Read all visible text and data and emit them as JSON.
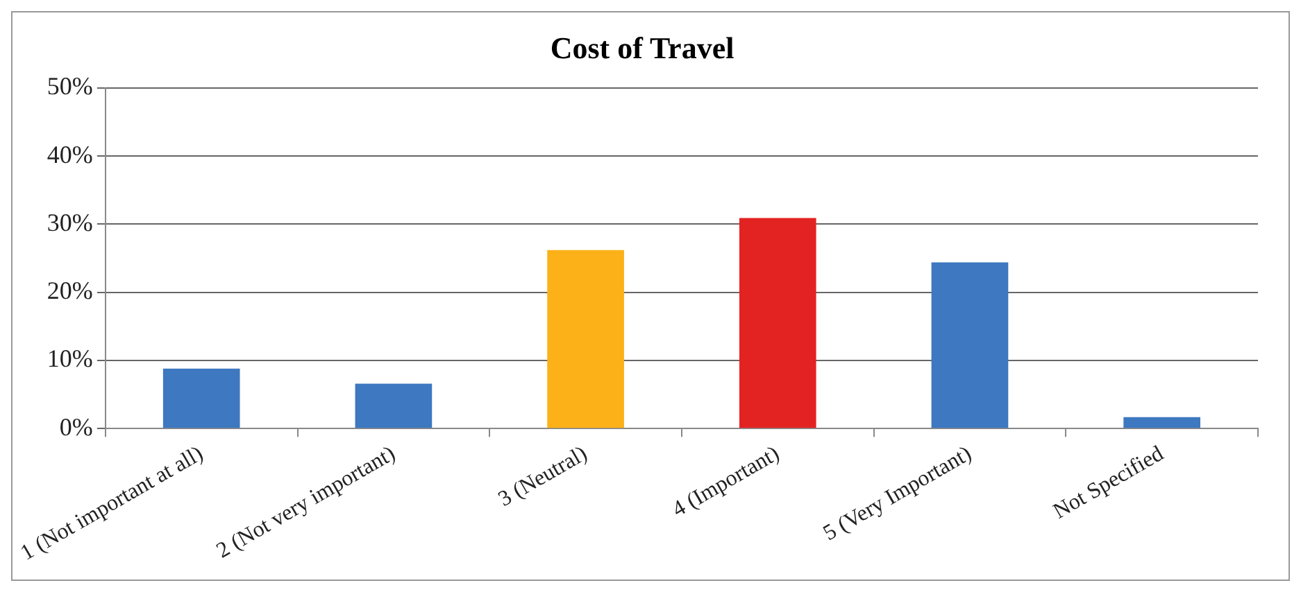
{
  "chart_data": {
    "type": "bar",
    "title": "Cost of Travel",
    "categories": [
      "1 (Not important at all)",
      "2 (Not very important)",
      "3 (Neutral)",
      "4 (Important)",
      "5 (Very Important)",
      "Not Specified"
    ],
    "values": [
      8.8,
      6.6,
      26.2,
      30.9,
      24.4,
      1.7
    ],
    "colors": [
      "#3d78c0",
      "#3d78c0",
      "#fbb117",
      "#e32222",
      "#3d78c0",
      "#3d78c0"
    ],
    "ylim": [
      0,
      50
    ],
    "yticks": [
      {
        "value": 0,
        "label": "0%"
      },
      {
        "value": 10,
        "label": "10%"
      },
      {
        "value": 20,
        "label": "20%"
      },
      {
        "value": 30,
        "label": "30%"
      },
      {
        "value": 40,
        "label": "40%"
      },
      {
        "value": 50,
        "label": "50%"
      }
    ],
    "grid": "y",
    "legend": false
  }
}
